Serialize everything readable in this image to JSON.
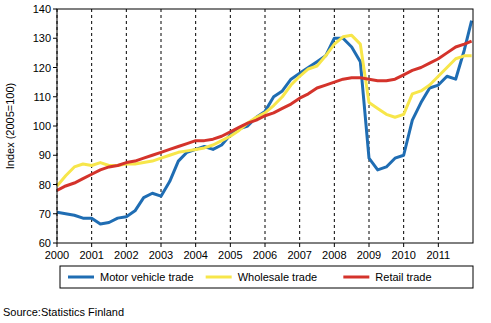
{
  "chart_data": {
    "type": "line",
    "y_label": "Index (2005=100)",
    "annotations": [
      "Source:Statistics Finland"
    ],
    "x": [
      2000,
      2000.25,
      2000.5,
      2000.75,
      2001,
      2001.25,
      2001.5,
      2001.75,
      2002,
      2002.25,
      2002.5,
      2002.75,
      2003,
      2003.25,
      2003.5,
      2003.75,
      2004,
      2004.25,
      2004.5,
      2004.75,
      2005,
      2005.25,
      2005.5,
      2005.75,
      2006,
      2006.25,
      2006.5,
      2006.75,
      2007,
      2007.25,
      2007.5,
      2007.75,
      2008,
      2008.25,
      2008.5,
      2008.75,
      2009,
      2009.25,
      2009.5,
      2009.75,
      2010,
      2010.25,
      2010.5,
      2010.75,
      2011,
      2011.25,
      2011.5,
      2011.75,
      2011.96
    ],
    "series": [
      {
        "name": "Motor vehicle trade",
        "color": "#1f6db3",
        "values": [
          70.5,
          70,
          69.5,
          68.5,
          68.5,
          66.5,
          67,
          68.5,
          69,
          71,
          75.5,
          77,
          76,
          81,
          88,
          91,
          92,
          93,
          92,
          93.5,
          97,
          99,
          100,
          103,
          105,
          110,
          112,
          116,
          118,
          120,
          122,
          124,
          130,
          130,
          127,
          122,
          89,
          85,
          86,
          89,
          90,
          102,
          108,
          113,
          114,
          117,
          116,
          126,
          136
        ]
      },
      {
        "name": "Wholesale trade",
        "color": "#f7e64a",
        "values": [
          79.5,
          83,
          86,
          87,
          86.5,
          87.5,
          86.5,
          86.5,
          87,
          87,
          87.5,
          88,
          89,
          90,
          91,
          91.5,
          92,
          92.5,
          93.5,
          95,
          96.5,
          98.5,
          101,
          103,
          104.5,
          107,
          110,
          114,
          117,
          119.5,
          120.5,
          124,
          128,
          130.5,
          131,
          128,
          108,
          106,
          104,
          103,
          104,
          111,
          112,
          114,
          117,
          120,
          123,
          124,
          124
        ]
      },
      {
        "name": "Retail trade",
        "color": "#d4332b",
        "values": [
          78,
          79.5,
          80.5,
          82,
          83.5,
          85,
          86,
          86.5,
          87.5,
          88,
          89,
          90,
          91,
          92,
          93,
          94,
          95,
          95,
          95.5,
          96.5,
          98,
          99.5,
          101,
          102,
          103.5,
          104.5,
          106,
          107.5,
          109.5,
          111,
          113,
          114,
          115,
          116,
          116.5,
          116.5,
          116,
          115.5,
          115.5,
          116,
          117.5,
          119,
          120,
          121.5,
          123,
          125,
          127,
          128,
          129
        ]
      }
    ],
    "xlim": [
      2000,
      2012
    ],
    "xticks": [
      2000,
      2001,
      2002,
      2003,
      2004,
      2005,
      2006,
      2007,
      2008,
      2009,
      2010,
      2011
    ],
    "ylim": [
      60,
      140
    ],
    "yticks": [
      60,
      70,
      80,
      90,
      100,
      110,
      120,
      130,
      140
    ],
    "grid": true,
    "legend": "bottom"
  }
}
